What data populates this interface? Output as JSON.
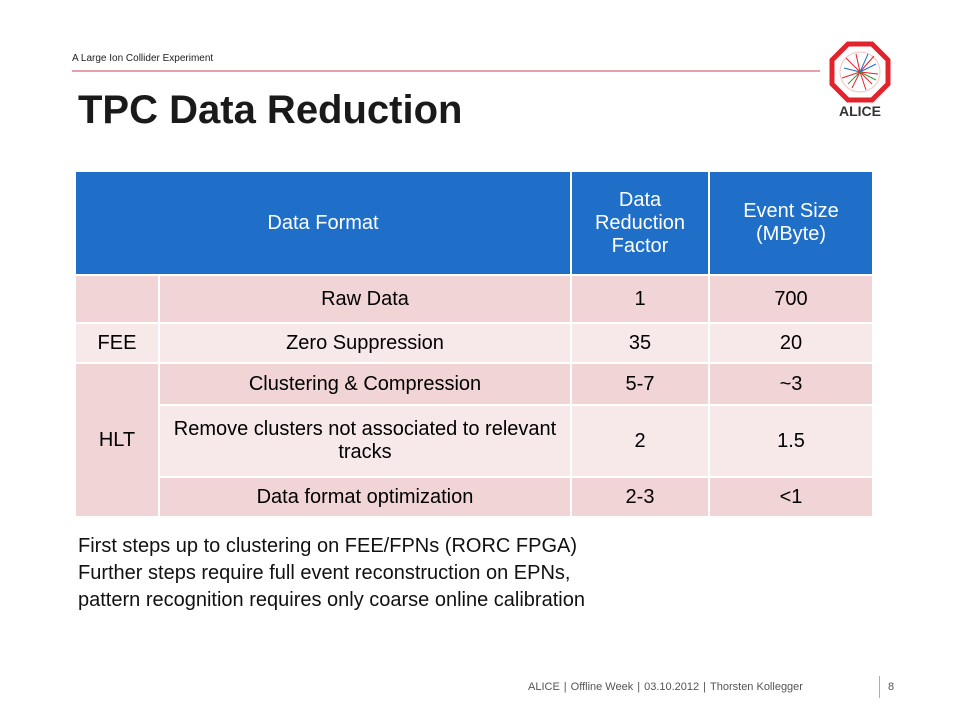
{
  "header": {
    "tagline": "A Large Ion Collider Experiment"
  },
  "logo": {
    "text": "ALICE",
    "accent": "#e2232b"
  },
  "title": "TPC Data Reduction",
  "table": {
    "headers": [
      "Data Format",
      "Data Reduction Factor",
      "Event Size (MByte)"
    ],
    "rows": [
      {
        "group": "",
        "format": "Raw Data",
        "factor": "1",
        "size": "700"
      },
      {
        "group": "FEE",
        "format": "Zero Suppression",
        "factor": "35",
        "size": "20"
      },
      {
        "group": "HLT",
        "format": "Clustering & Compression",
        "factor": "5-7",
        "size": "~3"
      },
      {
        "group": "",
        "format": "Remove clusters not associated to relevant tracks",
        "factor": "2",
        "size": "1.5"
      },
      {
        "group": "",
        "format": "Data format optimization",
        "factor": "2-3",
        "size": "<1"
      }
    ]
  },
  "notes": [
    "First steps up to clustering on FEE/FPNs (RORC FPGA)",
    "Further steps require full event reconstruction on EPNs,",
    "pattern recognition requires only coarse online calibration"
  ],
  "footer": {
    "experiment": "ALICE",
    "event": "Offline Week",
    "date": "03.10.2012",
    "author": "Thorsten Kollegger",
    "page": "8"
  },
  "colors": {
    "header_blue": "#1f6fc9",
    "row_pink": "#f0d4d6",
    "row_light": "#f7e8e9",
    "rule": "#e8a0a6"
  }
}
